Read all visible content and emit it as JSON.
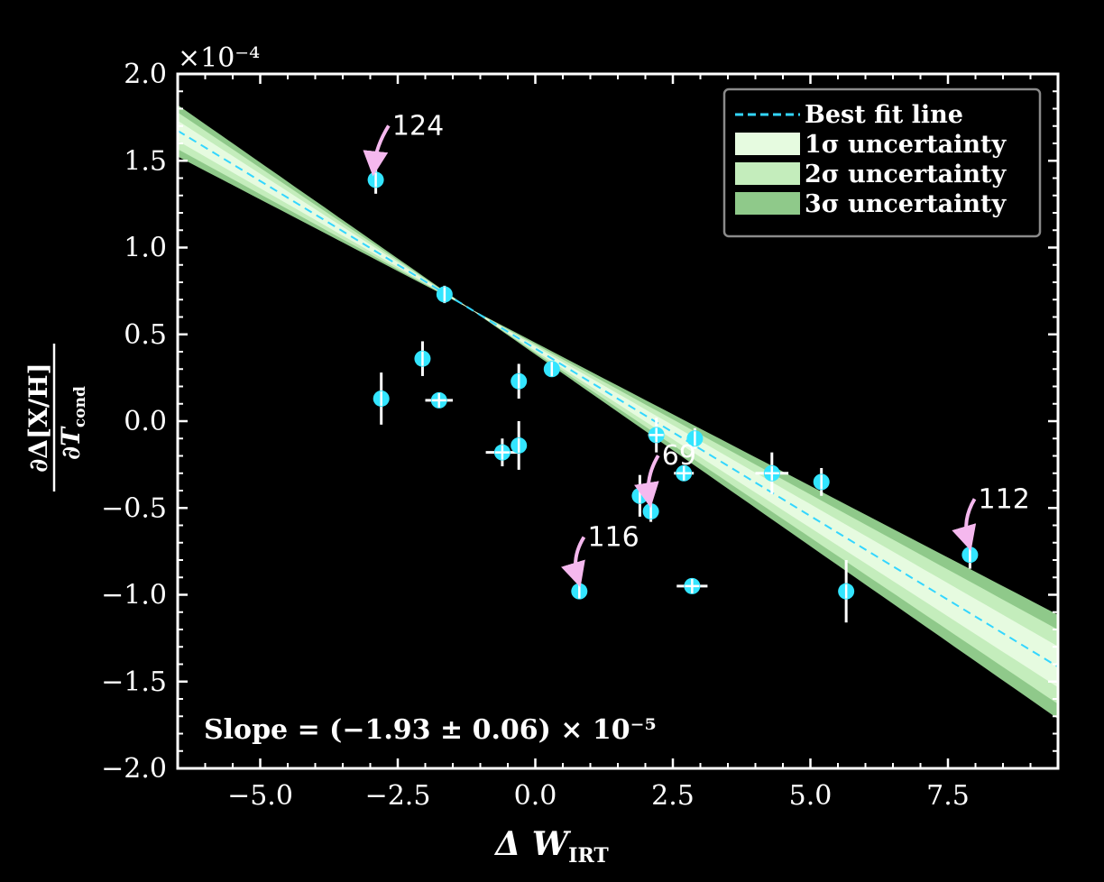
{
  "chart_data": {
    "type": "scatter",
    "xlim": [
      -6.5,
      9.5
    ],
    "ylim": [
      -2.0,
      2.0
    ],
    "x_ticks": [
      -5.0,
      -2.5,
      0.0,
      2.5,
      5.0,
      7.5
    ],
    "x_tick_labels": [
      "−5.0",
      "−2.5",
      "0.0",
      "2.5",
      "5.0",
      "7.5"
    ],
    "y_ticks": [
      2.0,
      1.5,
      1.0,
      0.5,
      0.0,
      -0.5,
      -1.0,
      -1.5,
      -2.0
    ],
    "y_tick_labels": [
      "2.0",
      "1.5",
      "1.0",
      "0.5",
      "0.0",
      "−0.5",
      "−1.0",
      "−1.5",
      "−2.0"
    ],
    "y_scale_label": "×10⁻⁴",
    "xlabel": {
      "main": "Δ W",
      "sub": "IRT"
    },
    "ylabel": {
      "numerator": "∂Δ[X/H]",
      "denominator": "∂T",
      "den_sub": "cond"
    },
    "grid": false,
    "legend_position": "top-right",
    "legend": [
      {
        "label": "Best fit line",
        "kind": "line",
        "color": "#33d6ff"
      },
      {
        "label": "1σ uncertainty",
        "kind": "band",
        "color": "#e6fbe0"
      },
      {
        "label": "2σ uncertainty",
        "kind": "band",
        "color": "#c4edbc"
      },
      {
        "label": "3σ uncertainty",
        "kind": "band",
        "color": "#8fc98a"
      }
    ],
    "fit": {
      "slope_per_unit_x": -0.193,
      "pivot": [
        -1.2,
        0.65
      ],
      "band_halfwidth_per_unit_distance": [
        0.011,
        0.02,
        0.028
      ]
    },
    "slope_text": "Slope = (−1.93 ± 0.06) × 10⁻⁵",
    "point_color": "#33e5ff",
    "errorbar_color": "#ffffff",
    "points": [
      {
        "x": -2.9,
        "y": 1.39,
        "xerr": 0.0,
        "yerr": 0.08
      },
      {
        "x": -1.65,
        "y": 0.73,
        "xerr": 0.0,
        "yerr": 0.05
      },
      {
        "x": -2.05,
        "y": 0.36,
        "xerr": 0.0,
        "yerr": 0.1
      },
      {
        "x": -2.8,
        "y": 0.13,
        "xerr": 0.0,
        "yerr": 0.15
      },
      {
        "x": -1.75,
        "y": 0.12,
        "xerr": 0.25,
        "yerr": 0.0
      },
      {
        "x": -0.3,
        "y": 0.23,
        "xerr": 0.0,
        "yerr": 0.1
      },
      {
        "x": 0.3,
        "y": 0.3,
        "xerr": 0.0,
        "yerr": 0.0
      },
      {
        "x": -0.6,
        "y": -0.18,
        "xerr": 0.3,
        "yerr": 0.08
      },
      {
        "x": -0.3,
        "y": -0.14,
        "xerr": 0.0,
        "yerr": 0.14
      },
      {
        "x": 2.2,
        "y": -0.08,
        "xerr": 0.15,
        "yerr": 0.1
      },
      {
        "x": 2.9,
        "y": -0.1,
        "xerr": 0.0,
        "yerr": 0.06
      },
      {
        "x": 2.7,
        "y": -0.3,
        "xerr": 0.18,
        "yerr": 0.0
      },
      {
        "x": 4.3,
        "y": -0.3,
        "xerr": 0.3,
        "yerr": 0.12
      },
      {
        "x": 5.2,
        "y": -0.35,
        "xerr": 0.0,
        "yerr": 0.08
      },
      {
        "x": 1.9,
        "y": -0.43,
        "xerr": 0.0,
        "yerr": 0.12
      },
      {
        "x": 2.1,
        "y": -0.52,
        "xerr": 0.0,
        "yerr": 0.06
      },
      {
        "x": 0.8,
        "y": -0.98,
        "xerr": 0.0,
        "yerr": 0.04
      },
      {
        "x": 2.85,
        "y": -0.95,
        "xerr": 0.28,
        "yerr": 0.0
      },
      {
        "x": 5.65,
        "y": -0.98,
        "xerr": 0.0,
        "yerr": 0.18
      },
      {
        "x": 7.9,
        "y": -0.77,
        "xerr": 0.0,
        "yerr": 0.08
      }
    ],
    "annotations": [
      {
        "label": "124",
        "point": [
          -2.9,
          1.39
        ],
        "text_at": [
          -2.6,
          1.65
        ]
      },
      {
        "label": "69",
        "point": [
          2.1,
          -0.52
        ],
        "text_at": [
          2.3,
          -0.25
        ]
      },
      {
        "label": "116",
        "point": [
          0.8,
          -0.98
        ],
        "text_at": [
          0.95,
          -0.72
        ]
      },
      {
        "label": "112",
        "point": [
          7.9,
          -0.77
        ],
        "text_at": [
          8.05,
          -0.5
        ]
      }
    ],
    "annotation_arrow_color": "#f5b8ee"
  }
}
